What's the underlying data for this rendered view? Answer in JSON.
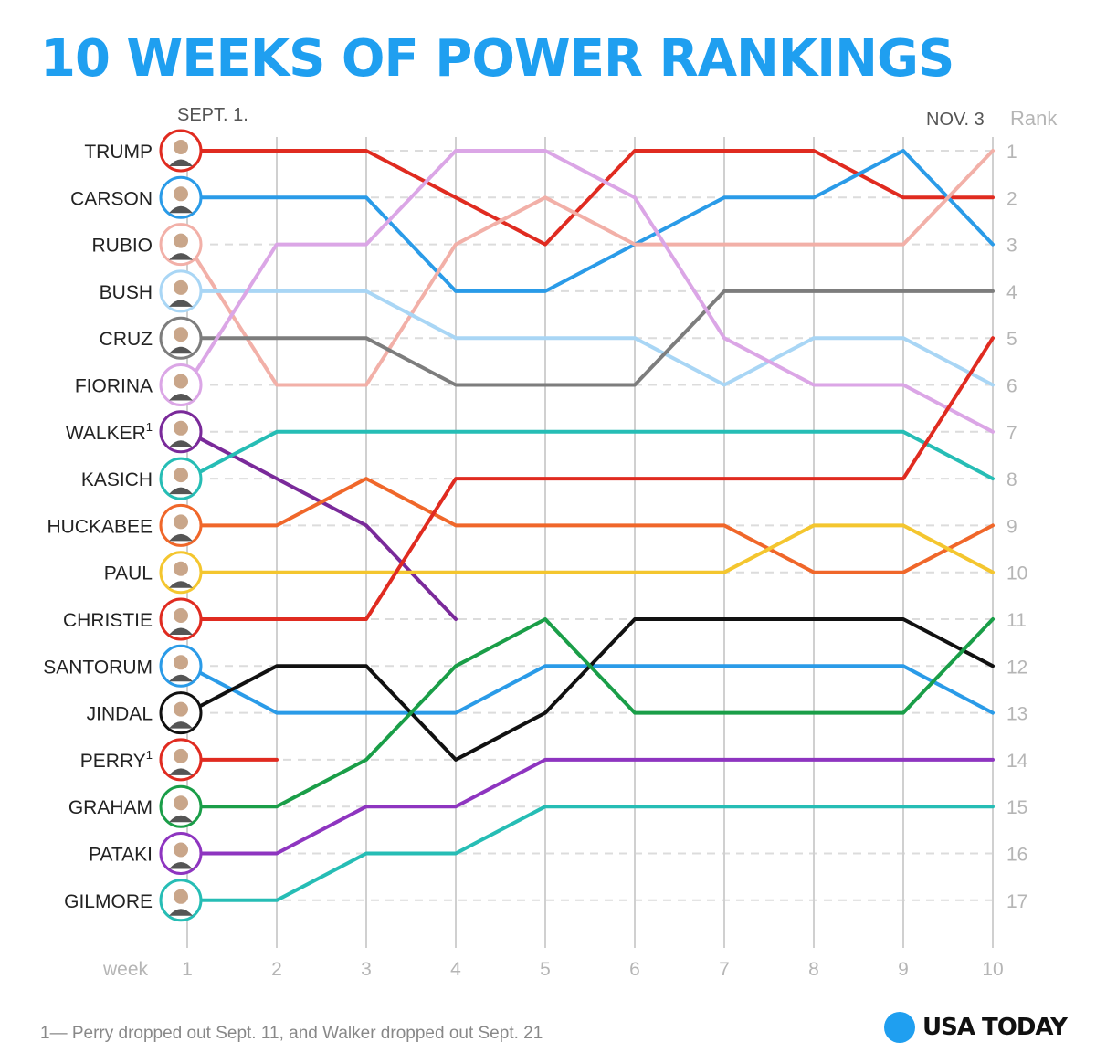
{
  "title": "10 WEEKS OF POWER RANKINGS",
  "start_label": "SEPT. 1.",
  "end_label": "NOV. 3",
  "rank_label": "Rank",
  "week_label": "week",
  "footnote": "1— Perry dropped out Sept. 11, and Walker dropped out Sept. 21",
  "brand": "USA TODAY",
  "colors": {
    "title": "#1f9ff0",
    "grid": "#d0d0d0",
    "tick": "#b5b5b5"
  },
  "chart_data": {
    "type": "line",
    "title": "10 WEEKS OF POWER RANKINGS",
    "xlabel": "week",
    "ylabel": "Rank",
    "x": [
      1,
      2,
      3,
      4,
      5,
      6,
      7,
      8,
      9,
      10
    ],
    "ylim": [
      1,
      17
    ],
    "y_inverted": true,
    "grid": true,
    "footnote_marker": "1",
    "series": [
      {
        "name": "TRUMP",
        "color": "#e02b20",
        "values": [
          1,
          1,
          1,
          2,
          3,
          1,
          1,
          1,
          2,
          2
        ]
      },
      {
        "name": "CARSON",
        "color": "#2a9be8",
        "values": [
          2,
          2,
          2,
          4,
          4,
          3,
          2,
          2,
          1,
          3
        ]
      },
      {
        "name": "RUBIO",
        "color": "#f2b0a8",
        "values": [
          3,
          6,
          6,
          3,
          2,
          3,
          3,
          3,
          3,
          1
        ]
      },
      {
        "name": "BUSH",
        "color": "#a9d6f5",
        "values": [
          4,
          4,
          4,
          5,
          5,
          5,
          6,
          5,
          5,
          6
        ]
      },
      {
        "name": "CRUZ",
        "color": "#7d7d7d",
        "values": [
          5,
          5,
          5,
          6,
          6,
          6,
          4,
          4,
          4,
          4
        ]
      },
      {
        "name": "FIORINA",
        "color": "#dba6e6",
        "values": [
          6,
          3,
          3,
          1,
          1,
          2,
          5,
          6,
          6,
          7
        ]
      },
      {
        "name": "WALKER",
        "color": "#7a2a9a",
        "footnote": true,
        "values": [
          7,
          8,
          9,
          11,
          null,
          null,
          null,
          null,
          null,
          null
        ]
      },
      {
        "name": "KASICH",
        "color": "#26bdb5",
        "values": [
          8,
          7,
          7,
          7,
          7,
          7,
          7,
          7,
          7,
          8
        ]
      },
      {
        "name": "HUCKABEE",
        "color": "#f0672a",
        "values": [
          9,
          9,
          8,
          9,
          9,
          9,
          9,
          10,
          10,
          9
        ]
      },
      {
        "name": "PAUL",
        "color": "#f4c62f",
        "values": [
          10,
          10,
          10,
          10,
          10,
          10,
          10,
          9,
          9,
          10
        ]
      },
      {
        "name": "CHRISTIE",
        "color": "#e02b20",
        "values": [
          11,
          11,
          11,
          8,
          8,
          8,
          8,
          8,
          8,
          5
        ]
      },
      {
        "name": "SANTORUM",
        "color": "#2a9be8",
        "values": [
          12,
          13,
          13,
          13,
          12,
          12,
          12,
          12,
          12,
          13
        ]
      },
      {
        "name": "JINDAL",
        "color": "#111111",
        "values": [
          13,
          12,
          12,
          14,
          13,
          11,
          11,
          11,
          11,
          12
        ]
      },
      {
        "name": "PERRY",
        "color": "#e02b20",
        "footnote": true,
        "values": [
          14,
          14,
          null,
          null,
          null,
          null,
          null,
          null,
          null,
          null
        ]
      },
      {
        "name": "GRAHAM",
        "color": "#1a9e48",
        "values": [
          15,
          15,
          14,
          12,
          11,
          13,
          13,
          13,
          13,
          11
        ]
      },
      {
        "name": "PATAKI",
        "color": "#8e35c0",
        "values": [
          16,
          16,
          15,
          15,
          14,
          14,
          14,
          14,
          14,
          14
        ]
      },
      {
        "name": "GILMORE",
        "color": "#26bdb5",
        "values": [
          17,
          17,
          16,
          16,
          15,
          15,
          15,
          15,
          15,
          15
        ]
      }
    ]
  }
}
